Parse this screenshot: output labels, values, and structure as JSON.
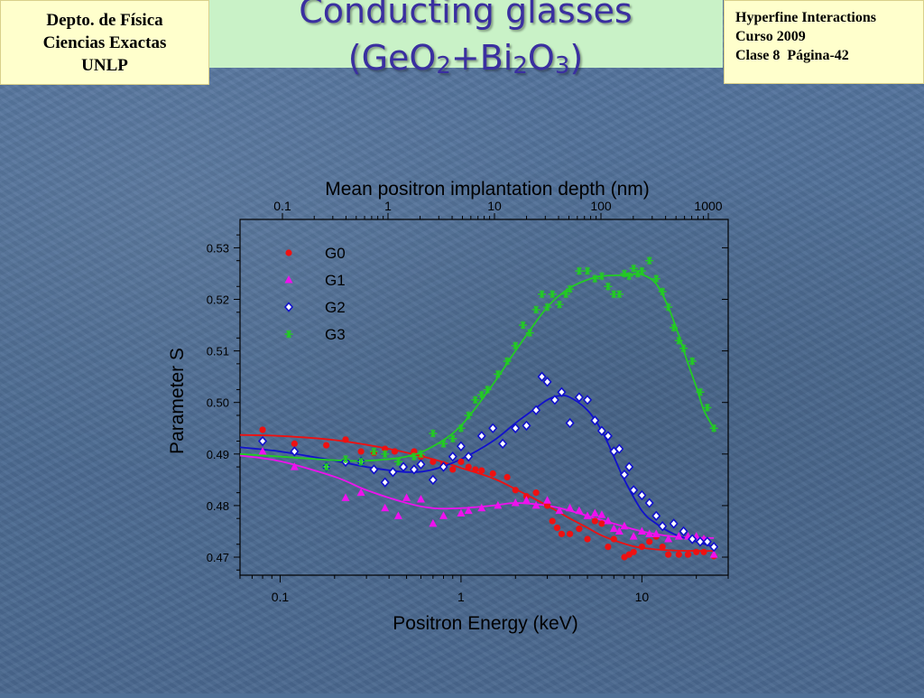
{
  "header": {
    "institution": [
      "Depto. de Física",
      "Ciencias Exactas",
      "UNLP"
    ],
    "course": [
      "Hyperfine Interactions",
      "Curso 2009",
      "Clase 8  Página-42"
    ],
    "title_line1": "Conducting glasses",
    "title_line2": {
      "p1": "(GeO",
      "s1": "2",
      "p2": "+Bi",
      "s2": "2",
      "p3": "O",
      "s3": "3",
      "p4": ")"
    }
  },
  "chart_data": {
    "type": "scatter",
    "xlabel": "Positron Energy (keV)",
    "ylabel": "Parameter S",
    "x2label": "Mean positron implantation depth (nm)",
    "xscale": "log",
    "xlim": [
      0.06,
      30
    ],
    "ylim": [
      0.4665,
      0.5355
    ],
    "x_ticks": [
      {
        "v": 0.1,
        "label": "0.1"
      },
      {
        "v": 1,
        "label": "1"
      },
      {
        "v": 10,
        "label": "10"
      }
    ],
    "x2_ticks": [
      {
        "label": "0.1"
      },
      {
        "label": "1"
      },
      {
        "label": "10"
      },
      {
        "label": "100"
      },
      {
        "label": "1000"
      }
    ],
    "y_ticks": [
      {
        "v": 0.47,
        "label": "0.47"
      },
      {
        "v": 0.48,
        "label": "0.48"
      },
      {
        "v": 0.49,
        "label": "0.49"
      },
      {
        "v": 0.5,
        "label": "0.50"
      },
      {
        "v": 0.51,
        "label": "0.51"
      },
      {
        "v": 0.52,
        "label": "0.52"
      },
      {
        "v": 0.53,
        "label": "0.53"
      }
    ],
    "legend_position": "top-left",
    "series": [
      {
        "name": "G0",
        "color": "#ee1111",
        "marker": "circle",
        "points": [
          [
            0.08,
            0.4947
          ],
          [
            0.12,
            0.492
          ],
          [
            0.18,
            0.4917
          ],
          [
            0.23,
            0.4928
          ],
          [
            0.28,
            0.4905
          ],
          [
            0.33,
            0.4902
          ],
          [
            0.38,
            0.491
          ],
          [
            0.43,
            0.4905
          ],
          [
            0.55,
            0.4905
          ],
          [
            0.6,
            0.4895
          ],
          [
            0.7,
            0.4885
          ],
          [
            0.8,
            0.488
          ],
          [
            0.9,
            0.487
          ],
          [
            1.0,
            0.4885
          ],
          [
            1.1,
            0.4875
          ],
          [
            1.2,
            0.487
          ],
          [
            1.3,
            0.4868
          ],
          [
            1.5,
            0.4862
          ],
          [
            1.8,
            0.4855
          ],
          [
            2.0,
            0.483
          ],
          [
            2.3,
            0.4818
          ],
          [
            2.6,
            0.4825
          ],
          [
            3.0,
            0.48
          ],
          [
            3.2,
            0.477
          ],
          [
            3.4,
            0.4757
          ],
          [
            3.6,
            0.4745
          ],
          [
            4.0,
            0.4745
          ],
          [
            4.5,
            0.4755
          ],
          [
            5.0,
            0.4735
          ],
          [
            5.5,
            0.477
          ],
          [
            6.0,
            0.4765
          ],
          [
            6.5,
            0.472
          ],
          [
            7.0,
            0.4735
          ],
          [
            8.0,
            0.47
          ],
          [
            8.5,
            0.4705
          ],
          [
            9.0,
            0.471
          ],
          [
            10.0,
            0.472
          ],
          [
            11.0,
            0.473
          ],
          [
            12.0,
            0.474
          ],
          [
            13.0,
            0.472
          ],
          [
            14.0,
            0.4705
          ],
          [
            16.0,
            0.4705
          ],
          [
            18.0,
            0.4705
          ],
          [
            20.0,
            0.471
          ],
          [
            22.0,
            0.471
          ],
          [
            25.0,
            0.4702
          ]
        ],
        "fit": [
          [
            0.06,
            0.4937
          ],
          [
            0.1,
            0.4935
          ],
          [
            0.2,
            0.4927
          ],
          [
            0.4,
            0.491
          ],
          [
            0.7,
            0.489
          ],
          [
            1.0,
            0.4873
          ],
          [
            1.5,
            0.4853
          ],
          [
            2.0,
            0.4832
          ],
          [
            3.0,
            0.48
          ],
          [
            4.0,
            0.4775
          ],
          [
            5.0,
            0.4757
          ],
          [
            6.0,
            0.4742
          ],
          [
            8.0,
            0.4726
          ],
          [
            10.0,
            0.4718
          ],
          [
            15.0,
            0.4713
          ],
          [
            25.0,
            0.4712
          ]
        ]
      },
      {
        "name": "G1",
        "color": "#ee11ee",
        "marker": "triangle",
        "points": [
          [
            0.08,
            0.4905
          ],
          [
            0.12,
            0.4875
          ],
          [
            0.23,
            0.4815
          ],
          [
            0.28,
            0.4825
          ],
          [
            0.38,
            0.4795
          ],
          [
            0.45,
            0.478
          ],
          [
            0.5,
            0.4815
          ],
          [
            0.6,
            0.4812
          ],
          [
            0.7,
            0.4765
          ],
          [
            0.8,
            0.478
          ],
          [
            1.0,
            0.4785
          ],
          [
            1.1,
            0.479
          ],
          [
            1.3,
            0.4795
          ],
          [
            1.6,
            0.48
          ],
          [
            2.0,
            0.4805
          ],
          [
            2.3,
            0.481
          ],
          [
            2.6,
            0.48
          ],
          [
            3.0,
            0.481
          ],
          [
            3.5,
            0.479
          ],
          [
            4.0,
            0.4795
          ],
          [
            4.5,
            0.479
          ],
          [
            5.0,
            0.478
          ],
          [
            5.5,
            0.4785
          ],
          [
            6.0,
            0.4782
          ],
          [
            6.5,
            0.477
          ],
          [
            7.0,
            0.4755
          ],
          [
            7.5,
            0.475
          ],
          [
            8.0,
            0.476
          ],
          [
            9.0,
            0.474
          ],
          [
            10.0,
            0.475
          ],
          [
            11.0,
            0.4745
          ],
          [
            12.0,
            0.4745
          ],
          [
            14.0,
            0.4735
          ],
          [
            16.0,
            0.474
          ],
          [
            18.0,
            0.474
          ],
          [
            20.0,
            0.474
          ],
          [
            22.0,
            0.4735
          ],
          [
            25.0,
            0.4705
          ]
        ],
        "fit": [
          [
            0.06,
            0.4897
          ],
          [
            0.1,
            0.4886
          ],
          [
            0.2,
            0.4856
          ],
          [
            0.3,
            0.483
          ],
          [
            0.5,
            0.4805
          ],
          [
            0.7,
            0.4795
          ],
          [
            1.0,
            0.4795
          ],
          [
            1.5,
            0.48
          ],
          [
            2.0,
            0.4805
          ],
          [
            3.0,
            0.48
          ],
          [
            4.0,
            0.479
          ],
          [
            5.0,
            0.478
          ],
          [
            7.0,
            0.4765
          ],
          [
            10.0,
            0.475
          ],
          [
            15.0,
            0.474
          ],
          [
            25.0,
            0.4737
          ]
        ]
      },
      {
        "name": "G2",
        "color": "#1111cc",
        "marker": "diamond",
        "points": [
          [
            0.08,
            0.4925
          ],
          [
            0.12,
            0.4905
          ],
          [
            0.18,
            0.4875
          ],
          [
            0.23,
            0.4885
          ],
          [
            0.28,
            0.4885
          ],
          [
            0.33,
            0.487
          ],
          [
            0.38,
            0.4845
          ],
          [
            0.42,
            0.4865
          ],
          [
            0.48,
            0.4875
          ],
          [
            0.55,
            0.487
          ],
          [
            0.6,
            0.488
          ],
          [
            0.7,
            0.485
          ],
          [
            0.8,
            0.4875
          ],
          [
            0.9,
            0.4895
          ],
          [
            1.0,
            0.4915
          ],
          [
            1.1,
            0.4895
          ],
          [
            1.3,
            0.4935
          ],
          [
            1.5,
            0.495
          ],
          [
            1.7,
            0.492
          ],
          [
            2.0,
            0.495
          ],
          [
            2.3,
            0.4955
          ],
          [
            2.6,
            0.4985
          ],
          [
            2.8,
            0.505
          ],
          [
            3.0,
            0.504
          ],
          [
            3.3,
            0.5005
          ],
          [
            3.6,
            0.502
          ],
          [
            4.0,
            0.496
          ],
          [
            4.5,
            0.501
          ],
          [
            5.0,
            0.5005
          ],
          [
            5.5,
            0.4965
          ],
          [
            6.0,
            0.4945
          ],
          [
            6.5,
            0.4935
          ],
          [
            7.0,
            0.4905
          ],
          [
            7.5,
            0.491
          ],
          [
            8.0,
            0.486
          ],
          [
            8.5,
            0.4875
          ],
          [
            9.0,
            0.483
          ],
          [
            10.0,
            0.482
          ],
          [
            11.0,
            0.4805
          ],
          [
            12.0,
            0.478
          ],
          [
            13.0,
            0.476
          ],
          [
            15.0,
            0.4765
          ],
          [
            17.0,
            0.475
          ],
          [
            19.0,
            0.4735
          ],
          [
            21.0,
            0.473
          ],
          [
            23.0,
            0.473
          ],
          [
            25.0,
            0.472
          ]
        ],
        "fit": [
          [
            0.06,
            0.4913
          ],
          [
            0.1,
            0.4905
          ],
          [
            0.2,
            0.4887
          ],
          [
            0.3,
            0.4875
          ],
          [
            0.5,
            0.4865
          ],
          [
            0.7,
            0.487
          ],
          [
            1.0,
            0.489
          ],
          [
            1.5,
            0.4925
          ],
          [
            2.0,
            0.496
          ],
          [
            2.5,
            0.4985
          ],
          [
            3.0,
            0.5005
          ],
          [
            3.5,
            0.5013
          ],
          [
            4.0,
            0.501
          ],
          [
            5.0,
            0.4985
          ],
          [
            6.0,
            0.4945
          ],
          [
            7.0,
            0.4895
          ],
          [
            8.0,
            0.485
          ],
          [
            10.0,
            0.479
          ],
          [
            12.0,
            0.4765
          ],
          [
            15.0,
            0.4745
          ],
          [
            20.0,
            0.473
          ],
          [
            25.0,
            0.472
          ]
        ]
      },
      {
        "name": "G3",
        "color": "#22cc22",
        "marker": "asterisk",
        "points": [
          [
            0.18,
            0.4875
          ],
          [
            0.23,
            0.489
          ],
          [
            0.28,
            0.4885
          ],
          [
            0.33,
            0.4905
          ],
          [
            0.38,
            0.49
          ],
          [
            0.45,
            0.4885
          ],
          [
            0.55,
            0.4895
          ],
          [
            0.6,
            0.49
          ],
          [
            0.7,
            0.494
          ],
          [
            0.8,
            0.492
          ],
          [
            0.9,
            0.493
          ],
          [
            1.0,
            0.495
          ],
          [
            1.1,
            0.4975
          ],
          [
            1.2,
            0.5005
          ],
          [
            1.3,
            0.5015
          ],
          [
            1.4,
            0.5025
          ],
          [
            1.6,
            0.5055
          ],
          [
            1.8,
            0.508
          ],
          [
            2.0,
            0.511
          ],
          [
            2.2,
            0.515
          ],
          [
            2.4,
            0.5135
          ],
          [
            2.6,
            0.518
          ],
          [
            2.8,
            0.521
          ],
          [
            3.0,
            0.5185
          ],
          [
            3.2,
            0.521
          ],
          [
            3.5,
            0.519
          ],
          [
            3.8,
            0.521
          ],
          [
            4.0,
            0.522
          ],
          [
            4.5,
            0.5255
          ],
          [
            5.0,
            0.5255
          ],
          [
            5.5,
            0.524
          ],
          [
            6.0,
            0.5245
          ],
          [
            6.5,
            0.5225
          ],
          [
            7.0,
            0.521
          ],
          [
            7.5,
            0.521
          ],
          [
            8.0,
            0.525
          ],
          [
            8.5,
            0.5245
          ],
          [
            9.0,
            0.526
          ],
          [
            9.5,
            0.525
          ],
          [
            10.0,
            0.5255
          ],
          [
            11.0,
            0.5275
          ],
          [
            12.0,
            0.524
          ],
          [
            13.0,
            0.5215
          ],
          [
            14.0,
            0.5185
          ],
          [
            15.0,
            0.5145
          ],
          [
            16.0,
            0.512
          ],
          [
            17.0,
            0.5105
          ],
          [
            19.0,
            0.508
          ],
          [
            21.0,
            0.502
          ],
          [
            23.0,
            0.499
          ],
          [
            25.0,
            0.495
          ]
        ],
        "fit": [
          [
            0.06,
            0.49
          ],
          [
            0.1,
            0.4895
          ],
          [
            0.2,
            0.4888
          ],
          [
            0.3,
            0.4887
          ],
          [
            0.5,
            0.4895
          ],
          [
            0.7,
            0.4915
          ],
          [
            1.0,
            0.4955
          ],
          [
            1.5,
            0.5035
          ],
          [
            2.0,
            0.51
          ],
          [
            3.0,
            0.5185
          ],
          [
            4.0,
            0.5222
          ],
          [
            5.0,
            0.5238
          ],
          [
            6.0,
            0.5245
          ],
          [
            8.0,
            0.5247
          ],
          [
            10.0,
            0.5248
          ],
          [
            12.0,
            0.523
          ],
          [
            14.0,
            0.5185
          ],
          [
            16.0,
            0.513
          ],
          [
            18.0,
            0.5075
          ],
          [
            20.0,
            0.503
          ],
          [
            22.0,
            0.4985
          ],
          [
            25.0,
            0.495
          ]
        ]
      }
    ]
  }
}
